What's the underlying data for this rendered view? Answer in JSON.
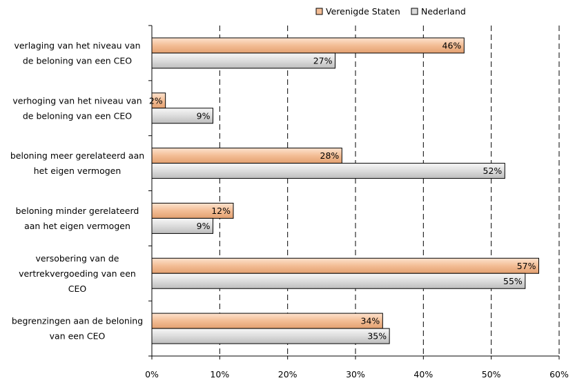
{
  "chart_data": {
    "type": "bar",
    "orientation": "horizontal",
    "categories": [
      "verlaging van het niveau van de beloning van een CEO",
      "verhoging van het niveau van de beloning van een CEO",
      "beloning meer gerelateerd aan het eigen vermogen",
      "beloning minder gerelateerd aan het eigen vermogen",
      "versobering van de vertrekvergoeding van een CEO",
      "begrenzingen aan de beloning van een CEO"
    ],
    "category_lines": [
      [
        "verlaging van het niveau van",
        "de beloning van een CEO"
      ],
      [
        "verhoging van het niveau van",
        "de beloning van een CEO"
      ],
      [
        "beloning meer gerelateerd aan",
        "het eigen vermogen"
      ],
      [
        "beloning minder gerelateerd",
        "aan het eigen vermogen"
      ],
      [
        "versobering van de",
        "vertrekvergoeding van een",
        "CEO"
      ],
      [
        "begrenzingen aan de beloning",
        "van een CEO"
      ]
    ],
    "series": [
      {
        "name": "Verenigde Staten",
        "color": "#f3bd95",
        "values": [
          46,
          2,
          28,
          12,
          57,
          34
        ],
        "labels": [
          "46%",
          "2%",
          "28%",
          "12%",
          "57%",
          "34%"
        ]
      },
      {
        "name": "Nederland",
        "color": "#d9d9d9",
        "values": [
          27,
          9,
          52,
          9,
          55,
          35
        ],
        "labels": [
          "27%",
          "9%",
          "52%",
          "9%",
          "55%",
          "35%"
        ]
      }
    ],
    "xlim": [
      0,
      60
    ],
    "xticks": [
      "0%",
      "10%",
      "20%",
      "30%",
      "40%",
      "50%",
      "60%"
    ],
    "grid": "vertical dashed",
    "legend_position": "top"
  }
}
